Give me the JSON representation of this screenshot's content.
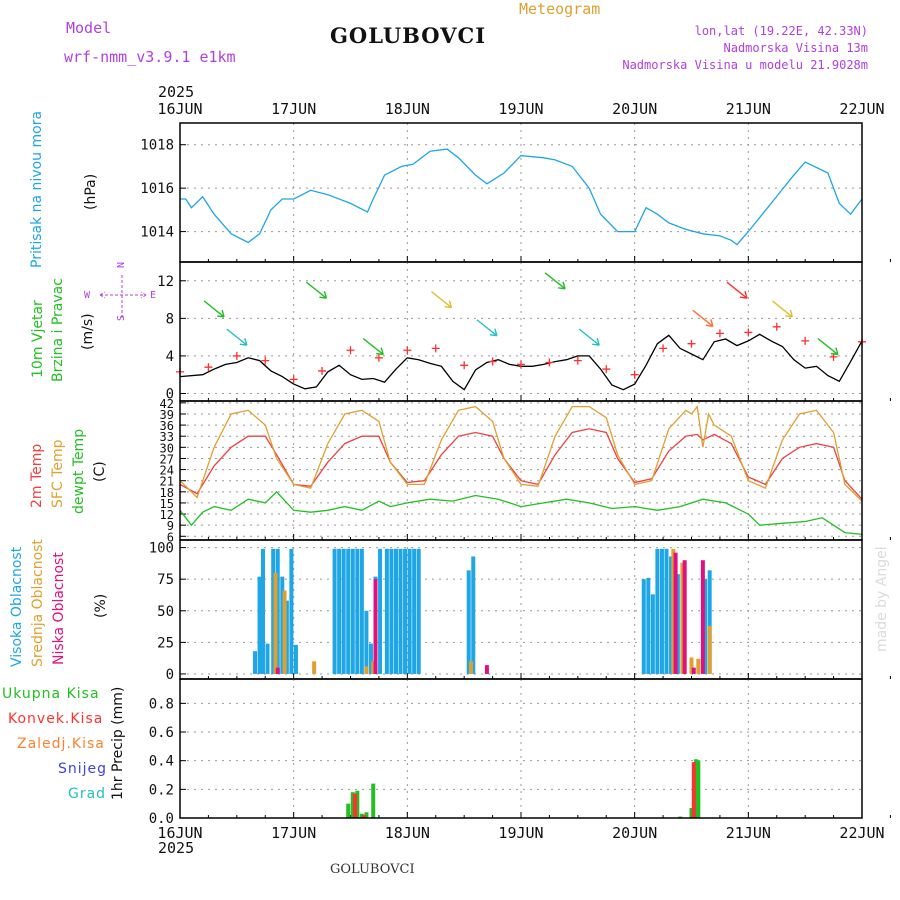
{
  "header": {
    "model_label": "Model",
    "model_name": "wrf-nmm_v3.9.1 e1km",
    "station": "GOLUBOVCI",
    "title": "Meteogram",
    "coords": "lon,lat (19.22E, 42.33N)",
    "elevation": "Nadmorska Visina 13m",
    "model_elevation": "Nadmorska Visina u modelu 21.9028m",
    "year": "2025",
    "footer_station": "GOLUBOVCI",
    "watermark": "made by Angel"
  },
  "colors": {
    "pressure": "#1ea6e6",
    "wind_label": "#22c022",
    "wind_speed_line": "#000000",
    "gust_marker": "#ff3030",
    "temp_2m": "#f04040",
    "temp_sfc": "#e0a030",
    "dewpoint": "#22c022",
    "cloud_high": "#1ea6e6",
    "cloud_mid": "#e0a030",
    "cloud_low": "#e01080",
    "precip_total": "#22c022",
    "precip_conv": "#ff3030",
    "precip_frz": "#ff8030",
    "precip_snow": "#4040e0",
    "precip_grad": "#22c0c0",
    "compass": "#b040e0"
  },
  "compass": {
    "n": "N",
    "s": "S",
    "w": "W",
    "e": "E"
  },
  "chart_data": [
    {
      "type": "line",
      "panel": "pressure",
      "labels": [
        "Pritisak na nivou mora",
        "(hPa)"
      ],
      "x_ticks": [
        "16JUN",
        "17JUN",
        "18JUN",
        "19JUN",
        "20JUN",
        "21JUN",
        "22JUN"
      ],
      "y_ticks": [
        1014,
        1016,
        1018
      ],
      "ylim": [
        1012.6,
        1019.0
      ],
      "grid": true,
      "series": [
        {
          "key": "pressure",
          "color_key": "pressure",
          "x": [
            0,
            0.05,
            0.1,
            0.2,
            0.3,
            0.45,
            0.6,
            0.7,
            0.8,
            0.9,
            1.0,
            1.15,
            1.3,
            1.5,
            1.65,
            1.7,
            1.8,
            1.95,
            2.05,
            2.2,
            2.35,
            2.45,
            2.6,
            2.7,
            2.85,
            3.0,
            3.2,
            3.3,
            3.45,
            3.6,
            3.7,
            3.85,
            4.0,
            4.1,
            4.2,
            4.3,
            4.45,
            4.6,
            4.75,
            4.85,
            4.9,
            5.0,
            5.2,
            5.4,
            5.5,
            5.7,
            5.8,
            5.9,
            6.0
          ],
          "y": [
            1015.5,
            1015.5,
            1015.1,
            1015.6,
            1014.8,
            1013.9,
            1013.5,
            1013.9,
            1015.0,
            1015.5,
            1015.5,
            1015.9,
            1015.7,
            1015.3,
            1014.9,
            1015.5,
            1016.6,
            1017.0,
            1017.1,
            1017.7,
            1017.8,
            1017.4,
            1016.6,
            1016.2,
            1016.7,
            1017.5,
            1017.4,
            1017.3,
            1017.0,
            1016.0,
            1014.8,
            1014.0,
            1014.0,
            1015.1,
            1014.8,
            1014.4,
            1014.1,
            1013.9,
            1013.8,
            1013.6,
            1013.4,
            1014.0,
            1015.3,
            1016.6,
            1017.2,
            1016.7,
            1015.3,
            1014.8,
            1015.5
          ]
        }
      ]
    },
    {
      "type": "line",
      "panel": "wind",
      "labels": [
        "10m Vjetar",
        "Brzina i Pravac",
        "(m/s)"
      ],
      "x_ticks": [
        "16JUN",
        "17JUN",
        "18JUN",
        "19JUN",
        "20JUN",
        "21JUN",
        "22JUN"
      ],
      "y_ticks": [
        0,
        4,
        8,
        12
      ],
      "ylim": [
        -0.8,
        14.0
      ],
      "grid": true,
      "series": [
        {
          "key": "wind_speed",
          "color_key": "wind_speed_line",
          "x": [
            0,
            0.2,
            0.3,
            0.4,
            0.5,
            0.6,
            0.7,
            0.8,
            0.9,
            1.0,
            1.1,
            1.2,
            1.3,
            1.4,
            1.5,
            1.6,
            1.7,
            1.8,
            1.9,
            2.0,
            2.1,
            2.2,
            2.3,
            2.4,
            2.5,
            2.6,
            2.7,
            2.8,
            2.9,
            3.0,
            3.1,
            3.2,
            3.3,
            3.4,
            3.5,
            3.6,
            3.7,
            3.8,
            3.9,
            4.0,
            4.1,
            4.2,
            4.3,
            4.4,
            4.5,
            4.6,
            4.7,
            4.8,
            4.9,
            5.0,
            5.1,
            5.2,
            5.3,
            5.4,
            5.5,
            5.6,
            5.7,
            5.8,
            5.9,
            6.0
          ],
          "y": [
            1.8,
            2.0,
            2.6,
            3.1,
            3.3,
            3.8,
            3.5,
            2.4,
            1.8,
            1.0,
            0.5,
            0.7,
            2.3,
            3.0,
            2.0,
            1.5,
            1.6,
            1.2,
            2.6,
            3.8,
            3.6,
            3.2,
            2.9,
            1.3,
            0.4,
            2.5,
            3.3,
            3.6,
            3.1,
            2.9,
            2.9,
            3.1,
            3.4,
            3.6,
            4.0,
            4.0,
            2.6,
            0.9,
            0.4,
            1.0,
            3.0,
            5.3,
            6.2,
            4.8,
            4.2,
            3.6,
            5.5,
            5.8,
            5.1,
            5.6,
            6.3,
            5.6,
            5.0,
            3.6,
            2.7,
            2.9,
            1.9,
            1.3,
            3.4,
            5.6
          ]
        },
        {
          "key": "gusts",
          "color_key": "gust_marker",
          "x": [
            0,
            0.25,
            0.5,
            0.75,
            1.0,
            1.25,
            1.5,
            1.75,
            2.0,
            2.25,
            2.5,
            2.75,
            3.0,
            3.25,
            3.5,
            3.75,
            4.0,
            4.25,
            4.5,
            4.75,
            5.0,
            5.25,
            5.5,
            5.75,
            6.0
          ],
          "y": [
            2.3,
            2.8,
            4.0,
            3.5,
            1.5,
            2.4,
            4.6,
            3.8,
            4.6,
            4.8,
            3.0,
            3.4,
            3.1,
            3.3,
            3.5,
            2.6,
            2.0,
            4.8,
            5.3,
            6.4,
            6.5,
            7.1,
            5.6,
            3.9,
            5.5
          ]
        }
      ]
    },
    {
      "type": "line",
      "panel": "temperature",
      "labels": [
        "2m Temp",
        "SFC Temp",
        "dewpt Temp",
        "(C)"
      ],
      "x_ticks": [
        "16JUN",
        "17JUN",
        "18JUN",
        "19JUN",
        "20JUN",
        "21JUN",
        "22JUN"
      ],
      "y_ticks": [
        6,
        9,
        12,
        15,
        18,
        21,
        24,
        27,
        30,
        33,
        36,
        39,
        42
      ],
      "ylim": [
        5.0,
        42.5
      ],
      "grid": true,
      "series": [
        {
          "key": "t2m",
          "color_key": "temp_2m",
          "x": [
            0,
            0.15,
            0.3,
            0.45,
            0.6,
            0.75,
            0.85,
            1.0,
            1.15,
            1.3,
            1.45,
            1.6,
            1.75,
            1.85,
            2.0,
            2.15,
            2.3,
            2.45,
            2.6,
            2.75,
            2.85,
            3.0,
            3.15,
            3.3,
            3.45,
            3.6,
            3.75,
            3.85,
            4.0,
            4.15,
            4.3,
            4.45,
            4.55,
            4.6,
            4.7,
            4.85,
            5.0,
            5.15,
            5.3,
            5.45,
            5.6,
            5.75,
            5.85,
            6.0
          ],
          "y": [
            20,
            17.5,
            25,
            30,
            33,
            33,
            28,
            20,
            19.5,
            26,
            31,
            33,
            33,
            26,
            20.5,
            21,
            28,
            33,
            34,
            33,
            27,
            21,
            20,
            28,
            34,
            35,
            34,
            27,
            20.5,
            21.5,
            29,
            33,
            33.5,
            32,
            33.5,
            31,
            22,
            20,
            27,
            30,
            31,
            30,
            21,
            16
          ]
        },
        {
          "key": "sfc",
          "color_key": "temp_sfc",
          "x": [
            0,
            0.15,
            0.3,
            0.45,
            0.6,
            0.75,
            0.85,
            1.0,
            1.15,
            1.3,
            1.45,
            1.6,
            1.75,
            1.85,
            2.0,
            2.15,
            2.3,
            2.45,
            2.6,
            2.75,
            2.85,
            3.0,
            3.15,
            3.3,
            3.45,
            3.6,
            3.75,
            3.85,
            4.0,
            4.15,
            4.3,
            4.45,
            4.5,
            4.55,
            4.6,
            4.65,
            4.7,
            4.85,
            5.0,
            5.15,
            5.3,
            5.45,
            5.6,
            5.75,
            5.85,
            6.0
          ],
          "y": [
            21,
            16.5,
            30,
            39,
            40,
            36,
            27,
            20,
            19,
            31,
            39,
            40,
            37,
            26,
            20,
            20,
            32,
            40,
            41,
            37,
            27,
            20,
            19.5,
            33,
            41,
            41,
            38,
            28,
            20,
            21,
            35,
            40,
            39,
            41,
            30,
            39,
            36,
            33,
            21,
            19,
            32,
            39,
            40,
            34,
            20,
            15.5
          ]
        },
        {
          "key": "dewpt",
          "color_key": "dewpoint",
          "x": [
            0,
            0.1,
            0.2,
            0.3,
            0.45,
            0.6,
            0.75,
            0.85,
            1.0,
            1.15,
            1.3,
            1.45,
            1.6,
            1.75,
            1.85,
            2.0,
            2.2,
            2.4,
            2.6,
            2.8,
            3.0,
            3.2,
            3.4,
            3.6,
            3.8,
            4.0,
            4.2,
            4.4,
            4.6,
            4.8,
            5.0,
            5.1,
            5.3,
            5.5,
            5.65,
            5.75,
            5.85,
            6.0
          ],
          "y": [
            13,
            9,
            12.5,
            14,
            13,
            16,
            15,
            18,
            13,
            12.5,
            13,
            14,
            13,
            15.5,
            14,
            15,
            16,
            15.5,
            17,
            16,
            14,
            15,
            16,
            15,
            13.5,
            14,
            13,
            14,
            16,
            15,
            12,
            9,
            9.5,
            10,
            11,
            9,
            7,
            6.5
          ]
        }
      ]
    },
    {
      "type": "bar",
      "panel": "clouds",
      "labels": [
        "Visoka Oblacnost",
        "Srednja Oblacnost",
        "Niska Oblacnost",
        "(%)"
      ],
      "x_ticks": [
        "16JUN",
        "17JUN",
        "18JUN",
        "19JUN",
        "20JUN",
        "21JUN",
        "22JUN"
      ],
      "y_ticks": [
        0,
        25,
        50,
        75,
        100
      ],
      "ylim": [
        -4,
        106
      ],
      "grid": true,
      "series": [
        {
          "name": "Visoka Oblacnost",
          "color_key": "cloud_high",
          "x": [
            0.66,
            0.7,
            0.73,
            0.77,
            0.82,
            0.86,
            0.9,
            0.94,
            0.98,
            1.02,
            1.36,
            1.4,
            1.44,
            1.48,
            1.52,
            1.56,
            1.6,
            1.64,
            1.68,
            1.72,
            1.76,
            1.82,
            1.86,
            1.9,
            1.94,
            1.98,
            2.02,
            2.06,
            2.1,
            2.54,
            2.58,
            4.08,
            4.12,
            4.16,
            4.2,
            4.24,
            4.28,
            4.32,
            4.38,
            4.62,
            4.66
          ],
          "y": [
            18,
            77,
            99,
            24,
            99,
            99,
            77,
            58,
            99,
            23,
            99,
            99,
            99,
            99,
            99,
            99,
            99,
            50,
            24,
            77,
            99,
            99,
            99,
            99,
            99,
            99,
            99,
            99,
            99,
            82,
            93,
            75,
            76,
            63,
            99,
            99,
            99,
            93,
            79,
            75,
            82
          ]
        },
        {
          "name": "Srednja Oblacnost",
          "color_key": "cloud_mid",
          "x": [
            0.84,
            0.92,
            1.18,
            1.64,
            1.7,
            2.56,
            4.34,
            4.42,
            4.5,
            4.56,
            4.66
          ],
          "y": [
            80,
            66,
            10,
            6,
            10,
            10,
            99,
            88,
            13,
            12,
            38
          ]
        },
        {
          "name": "Niska Oblacnost",
          "color_key": "cloud_low",
          "x": [
            0.86,
            1.72,
            2.7,
            4.36,
            4.44,
            4.52,
            4.6
          ],
          "y": [
            5,
            75,
            7,
            96,
            90,
            5,
            90
          ]
        }
      ]
    },
    {
      "type": "bar",
      "panel": "precip",
      "labels": [
        "Ukupna Kisa",
        "Konvek.Kisa",
        "Zaledj.Kisa",
        "Snijeg",
        "Grad",
        "1hr Precip (mm)"
      ],
      "x_ticks": [
        "16JUN",
        "17JUN",
        "18JUN",
        "19JUN",
        "20JUN",
        "21JUN",
        "22JUN"
      ],
      "y_ticks": [
        0.0,
        0.2,
        0.4,
        0.6,
        0.8
      ],
      "y_tick_labels": [
        "0.0",
        "0.2",
        "0.4",
        "0.6",
        "0.8"
      ],
      "ylim": [
        0.0,
        0.97
      ],
      "grid": true,
      "series": [
        {
          "name": "Ukupna Kisa",
          "color_key": "precip_total",
          "x": [
            1.48,
            1.52,
            1.56,
            1.6,
            1.64,
            1.7,
            4.4,
            4.5,
            4.54,
            4.56
          ],
          "y": [
            0.1,
            0.18,
            0.19,
            0.03,
            0.04,
            0.24,
            0.01,
            0.07,
            0.41,
            0.4
          ]
        },
        {
          "name": "Konvek.Kisa",
          "color_key": "precip_conv",
          "x": [
            1.54,
            1.62,
            4.52
          ],
          "y": [
            0.17,
            0.02,
            0.39
          ]
        }
      ]
    }
  ]
}
